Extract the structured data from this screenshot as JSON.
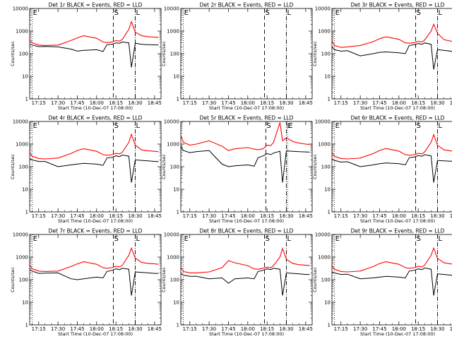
{
  "chart_data": {
    "type": "line",
    "layout": "3x3 grid",
    "yscale": "log",
    "ylim": [
      1,
      10000
    ],
    "yticks": [
      "1",
      "10",
      "100",
      "1000",
      "10000"
    ],
    "xlim": [
      "17:08",
      "18:50"
    ],
    "xticks": [
      "17:15",
      "17:30",
      "17:45",
      "18:00",
      "18:15",
      "18:30",
      "18:45"
    ],
    "xlabel": "Start Time (10-Dec-07 17:08:00)",
    "ylabel": "Counts/sec",
    "series_colors": {
      "Events": "#000000",
      "LLD": "#ff0000"
    },
    "panels": [
      {
        "title": "Det 1r BLACK = Events, RED = LLD",
        "x_of_point": "minutes after 17:08 (event) — see times",
        "times": [
          "17:08",
          "17:10",
          "17:15",
          "17:20",
          "17:30",
          "17:40",
          "17:45",
          "17:50",
          "18:00",
          "18:05",
          "18:08",
          "18:12",
          "18:15",
          "18:18",
          "18:20",
          "18:25",
          "18:27",
          "18:30",
          "18:35",
          "18:40",
          "18:45",
          "18:48"
        ],
        "events": [
          260,
          240,
          205,
          210,
          200,
          160,
          130,
          140,
          150,
          125,
          250,
          260,
          300,
          290,
          330,
          300,
          25,
          290,
          260,
          250,
          245,
          240
        ],
        "lld": [
          420,
          300,
          240,
          230,
          240,
          380,
          500,
          620,
          480,
          330,
          310,
          330,
          380,
          360,
          430,
          1200,
          2600,
          900,
          620,
          560,
          540,
          520
        ],
        "markers": {
          "E": "17:10",
          "S": "18:13",
          "L": "18:30"
        }
      },
      {
        "title": "Det 2r BLACK = Events, RED = LLD",
        "times": [],
        "events": [],
        "lld": [],
        "markers": {
          "E": "17:10",
          "S": "18:13",
          "L": "18:30"
        }
      },
      {
        "title": "Det 3r BLACK = Events, RED = LLD",
        "times": [
          "17:08",
          "17:10",
          "17:15",
          "17:20",
          "17:30",
          "17:40",
          "17:45",
          "17:50",
          "18:00",
          "18:05",
          "18:08",
          "18:12",
          "18:15",
          "18:18",
          "18:20",
          "18:25",
          "18:27",
          "18:30",
          "18:35",
          "18:40",
          "18:45",
          "18:48"
        ],
        "events": [
          200,
          150,
          130,
          135,
          80,
          100,
          115,
          120,
          110,
          100,
          230,
          250,
          280,
          260,
          300,
          260,
          20,
          150,
          140,
          130,
          120,
          120
        ],
        "lld": [
          370,
          230,
          190,
          200,
          230,
          340,
          460,
          560,
          430,
          300,
          290,
          310,
          350,
          330,
          400,
          1000,
          2000,
          800,
          420,
          360,
          330,
          300
        ],
        "markers": {
          "E": "17:10",
          "S": "18:13",
          "L": "18:30"
        }
      },
      {
        "title": "Det 4r BLACK = Events, RED = LLD",
        "times": [
          "17:08",
          "17:10",
          "17:15",
          "17:20",
          "17:30",
          "17:40",
          "17:45",
          "17:50",
          "18:00",
          "18:05",
          "18:08",
          "18:12",
          "18:15",
          "18:18",
          "18:20",
          "18:25",
          "18:27",
          "18:30",
          "18:35",
          "18:40",
          "18:45",
          "18:48"
        ],
        "events": [
          230,
          200,
          170,
          170,
          100,
          120,
          130,
          140,
          130,
          115,
          240,
          260,
          300,
          280,
          330,
          290,
          20,
          200,
          190,
          180,
          170,
          170
        ],
        "lld": [
          420,
          290,
          230,
          220,
          240,
          380,
          520,
          620,
          480,
          340,
          320,
          340,
          390,
          370,
          440,
          1200,
          2700,
          900,
          550,
          500,
          480,
          460
        ],
        "markers": {
          "E": "17:10",
          "S": "18:13",
          "L": "18:30"
        }
      },
      {
        "title": "Det 5r BLACK = Events, RED = LLD",
        "times": [
          "17:08",
          "17:10",
          "17:15",
          "17:20",
          "17:30",
          "17:40",
          "17:45",
          "17:50",
          "18:00",
          "18:05",
          "18:08",
          "18:12",
          "18:15",
          "18:18",
          "18:20",
          "18:25",
          "18:27",
          "18:30",
          "18:35",
          "18:40",
          "18:45",
          "18:48"
        ],
        "events": [
          800,
          520,
          420,
          460,
          520,
          130,
          100,
          110,
          120,
          105,
          250,
          300,
          380,
          340,
          400,
          480,
          20,
          500,
          480,
          460,
          450,
          440
        ],
        "lld": [
          2500,
          1200,
          900,
          1000,
          1400,
          800,
          520,
          620,
          700,
          600,
          560,
          620,
          900,
          860,
          1200,
          9000,
          1400,
          1900,
          1300,
          1100,
          1000,
          950
        ],
        "markers": {
          "E": "18:31",
          "S": "18:14",
          "L": "18:30"
        }
      },
      {
        "title": "Det 6r BLACK = Events, RED = LLD",
        "times": [
          "17:08",
          "17:10",
          "17:15",
          "17:20",
          "17:30",
          "17:40",
          "17:45",
          "17:50",
          "18:00",
          "18:05",
          "18:08",
          "18:12",
          "18:15",
          "18:18",
          "18:20",
          "18:25",
          "18:27",
          "18:30",
          "18:35",
          "18:40",
          "18:45",
          "18:48"
        ],
        "events": [
          220,
          190,
          160,
          165,
          100,
          120,
          135,
          145,
          135,
          120,
          250,
          270,
          310,
          290,
          340,
          300,
          20,
          190,
          180,
          175,
          170,
          165
        ],
        "lld": [
          420,
          290,
          230,
          220,
          240,
          380,
          520,
          640,
          490,
          340,
          320,
          340,
          390,
          370,
          450,
          1200,
          2600,
          880,
          560,
          500,
          470,
          450
        ],
        "markers": {
          "E": "17:10",
          "S": "18:13",
          "L": "18:30"
        }
      },
      {
        "title": "Det 7r BLACK = Events, RED = LLD",
        "times": [
          "17:08",
          "17:10",
          "17:15",
          "17:20",
          "17:30",
          "17:40",
          "17:45",
          "17:50",
          "18:00",
          "18:05",
          "18:08",
          "18:12",
          "18:15",
          "18:18",
          "18:20",
          "18:25",
          "18:27",
          "18:30",
          "18:35",
          "18:40",
          "18:45",
          "18:48"
        ],
        "events": [
          280,
          240,
          190,
          195,
          200,
          110,
          100,
          110,
          130,
          120,
          230,
          260,
          300,
          280,
          320,
          290,
          20,
          220,
          210,
          200,
          190,
          190
        ],
        "lld": [
          460,
          300,
          240,
          230,
          240,
          380,
          500,
          620,
          480,
          340,
          320,
          340,
          390,
          370,
          440,
          1200,
          2500,
          900,
          580,
          520,
          500,
          480
        ],
        "markers": {
          "E": "17:10",
          "S": "18:13",
          "L": "18:30"
        }
      },
      {
        "title": "Det 8r BLACK = Events, RED = LLD",
        "times": [
          "17:08",
          "17:10",
          "17:15",
          "17:20",
          "17:30",
          "17:40",
          "17:45",
          "17:50",
          "18:00",
          "18:05",
          "18:08",
          "18:12",
          "18:15",
          "18:18",
          "18:20",
          "18:25",
          "18:27",
          "18:30",
          "18:35",
          "18:40",
          "18:45",
          "18:48"
        ],
        "events": [
          180,
          160,
          140,
          140,
          110,
          120,
          70,
          110,
          120,
          110,
          230,
          260,
          300,
          280,
          320,
          290,
          20,
          200,
          190,
          180,
          170,
          170
        ],
        "lld": [
          360,
          230,
          200,
          200,
          220,
          340,
          700,
          560,
          420,
          300,
          290,
          320,
          360,
          340,
          420,
          1000,
          2400,
          800,
          520,
          460,
          440,
          420
        ],
        "markers": {
          "E": "17:10",
          "S": "18:13",
          "L": "18:30"
        }
      },
      {
        "title": "Det 9r BLACK = Events, RED = LLD",
        "times": [
          "17:08",
          "17:10",
          "17:15",
          "17:20",
          "17:30",
          "17:40",
          "17:45",
          "17:50",
          "18:00",
          "18:05",
          "18:08",
          "18:12",
          "18:15",
          "18:18",
          "18:20",
          "18:25",
          "18:27",
          "18:30",
          "18:35",
          "18:40",
          "18:45",
          "18:48"
        ],
        "events": [
          220,
          200,
          170,
          175,
          110,
          120,
          130,
          140,
          130,
          120,
          240,
          260,
          300,
          280,
          330,
          290,
          20,
          180,
          170,
          160,
          150,
          150
        ],
        "lld": [
          420,
          290,
          230,
          220,
          240,
          380,
          520,
          620,
          480,
          340,
          320,
          340,
          390,
          370,
          440,
          1200,
          2500,
          880,
          560,
          500,
          470,
          450
        ],
        "markers": {
          "E": "17:10",
          "S": "18:13",
          "L": "18:30"
        }
      }
    ]
  }
}
